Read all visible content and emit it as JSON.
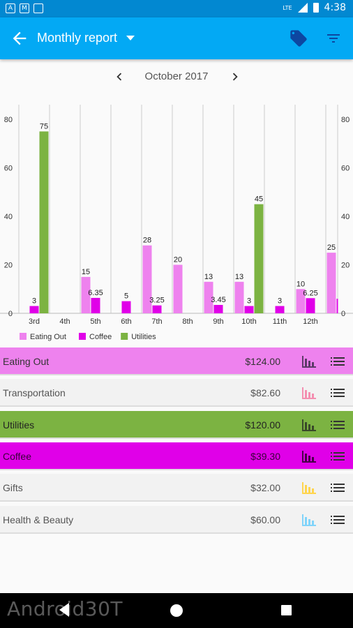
{
  "status_bar": {
    "time": "4:38",
    "network": "LTE",
    "notif_icons": [
      "a-icon",
      "gmail-icon",
      "sd-card-icon"
    ]
  },
  "app_bar": {
    "title": "Monthly report"
  },
  "month_nav": {
    "label": "October 2017"
  },
  "chart_data": {
    "type": "bar",
    "categories": [
      "3rd",
      "4th",
      "5th",
      "6th",
      "7th",
      "8th",
      "9th",
      "10th",
      "11th",
      "12th"
    ],
    "ylim": [
      0,
      80
    ],
    "y_ticks": [
      "0",
      "20",
      "40",
      "60",
      "80"
    ],
    "series": [
      {
        "name": "Eating Out",
        "color": "#ee82ee",
        "values": [
          null,
          null,
          15,
          null,
          28,
          20,
          13,
          13,
          null,
          10
        ],
        "labels": [
          "",
          "",
          "15",
          "",
          "28",
          "20",
          "13",
          "13",
          "",
          "10"
        ]
      },
      {
        "name": "Coffee",
        "color": "#e000e8",
        "values": [
          3,
          null,
          6.35,
          5,
          3.25,
          null,
          3.45,
          3,
          3,
          6.25
        ],
        "labels": [
          "3",
          "",
          "6.35",
          "5",
          "3.25",
          "",
          "3.45",
          "3",
          "3",
          "6.25"
        ]
      },
      {
        "name": "Utilities",
        "color": "#7cb342",
        "values": [
          75,
          null,
          null,
          null,
          null,
          null,
          null,
          45,
          null,
          null
        ],
        "labels": [
          "75",
          "",
          "",
          "",
          "",
          "",
          "",
          "45",
          "",
          ""
        ]
      }
    ],
    "partial_next": {
      "value": 25,
      "label": "25"
    },
    "legend": [
      "Eating Out",
      "Coffee",
      "Utilities"
    ],
    "legend_placement": "bottom-left",
    "grid": true
  },
  "categories": [
    {
      "name": "Eating Out",
      "amount": "$124.00",
      "bg": "#ee82ee",
      "text": "#333333",
      "chart_color": "#5e3a6a"
    },
    {
      "name": "Transportation",
      "amount": "$82.60",
      "bg": "#f2f2f2",
      "text": "#555555",
      "chart_color": "#f48fb1"
    },
    {
      "name": "Utilities",
      "amount": "$120.00",
      "bg": "#7cb342",
      "text": "#222222",
      "chart_color": "#3a4a2a"
    },
    {
      "name": "Coffee",
      "amount": "$39.30",
      "bg": "#e000e8",
      "text": "#3a003a",
      "chart_color": "#4a004a"
    },
    {
      "name": "Gifts",
      "amount": "$32.00",
      "bg": "#f2f2f2",
      "text": "#555555",
      "chart_color": "#ffd54f"
    },
    {
      "name": "Health & Beauty",
      "amount": "$60.00",
      "bg": "#f2f2f2",
      "text": "#555555",
      "chart_color": "#81d4fa"
    }
  ],
  "watermark": "Android30T"
}
